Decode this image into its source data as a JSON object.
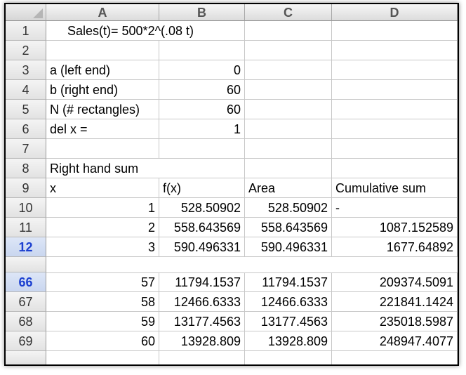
{
  "columns": [
    "A",
    "B",
    "C",
    "D"
  ],
  "rows": [
    {
      "num": "1",
      "a": "Sales(t)= 500*2^(.08 t)",
      "b": "",
      "c": "",
      "d": ""
    },
    {
      "num": "2",
      "a": "",
      "b": "",
      "c": "",
      "d": ""
    },
    {
      "num": "3",
      "a": "a (left end)",
      "b": "0",
      "c": "",
      "d": ""
    },
    {
      "num": "4",
      "a": "b (right end)",
      "b": "60",
      "c": "",
      "d": ""
    },
    {
      "num": "5",
      "a": "N (# rectangles)",
      "b": "60",
      "c": "",
      "d": ""
    },
    {
      "num": "6",
      "a": "del x =",
      "b": "1",
      "c": "",
      "d": ""
    },
    {
      "num": "7",
      "a": "",
      "b": "",
      "c": "",
      "d": ""
    },
    {
      "num": "8",
      "a": "Right hand sum",
      "b": "",
      "c": "",
      "d": ""
    },
    {
      "num": "9",
      "a": "x",
      "b": "f(x)",
      "c": "Area",
      "d": "Cumulative sum"
    },
    {
      "num": "10",
      "a": "1",
      "b": "528.50902",
      "c": "528.50902",
      "d": "-"
    },
    {
      "num": "11",
      "a": "2",
      "b": "558.643569",
      "c": "558.643569",
      "d": "1087.152589"
    },
    {
      "num": "12",
      "a": "3",
      "b": "590.496331",
      "c": "590.496331",
      "d": "1677.64892"
    },
    {
      "num": "66",
      "a": "57",
      "b": "11794.1537",
      "c": "11794.1537",
      "d": "209374.5091"
    },
    {
      "num": "67",
      "a": "58",
      "b": "12466.6333",
      "c": "12466.6333",
      "d": "221841.1424"
    },
    {
      "num": "68",
      "a": "59",
      "b": "13177.4563",
      "c": "13177.4563",
      "d": "235018.5987"
    },
    {
      "num": "69",
      "a": "60",
      "b": "13928.809",
      "c": "13928.809",
      "d": "248947.4077"
    }
  ],
  "colors": {
    "selected_row_header": "#1b3fd0",
    "grid": "#c8c8c8"
  }
}
